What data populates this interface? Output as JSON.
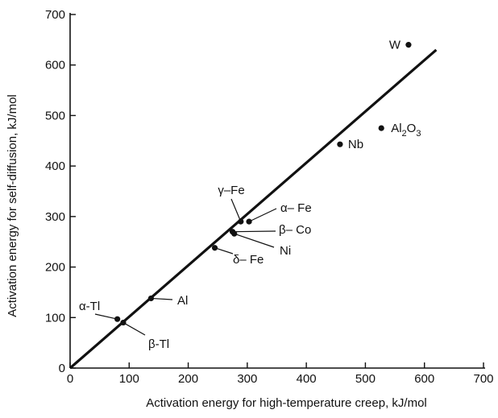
{
  "chart_data": {
    "type": "scatter",
    "title": "",
    "xlabel": "Activation energy for high-temperature creep, kJ/mol",
    "ylabel": "Activation energy for self-diffusion, kJ/mol",
    "xlim": [
      0,
      700
    ],
    "ylim": [
      0,
      700
    ],
    "xticks": [
      "0",
      "100",
      "200",
      "300",
      "400",
      "500",
      "600",
      "700"
    ],
    "yticks": [
      "0",
      "100",
      "200",
      "300",
      "400",
      "500",
      "600",
      "700"
    ],
    "grid": false,
    "fit_line": {
      "x": [
        0,
        620
      ],
      "y": [
        0,
        630
      ]
    },
    "points": [
      {
        "label": "W",
        "x": 573,
        "y": 640
      },
      {
        "label": "Al₂O₃",
        "x": 527,
        "y": 475
      },
      {
        "label": "Nb",
        "x": 457,
        "y": 443
      },
      {
        "label": "γ–Fe",
        "x": 289,
        "y": 290
      },
      {
        "label": "α– Fe",
        "x": 303,
        "y": 290
      },
      {
        "label": "β– Co",
        "x": 275,
        "y": 270
      },
      {
        "label": "Ni",
        "x": 278,
        "y": 266
      },
      {
        "label": "δ– Fe",
        "x": 245,
        "y": 238
      },
      {
        "label": "Al",
        "x": 137,
        "y": 138
      },
      {
        "label": "α-Tl",
        "x": 80,
        "y": 97
      },
      {
        "label": "β-Tl",
        "x": 90,
        "y": 90
      }
    ]
  }
}
